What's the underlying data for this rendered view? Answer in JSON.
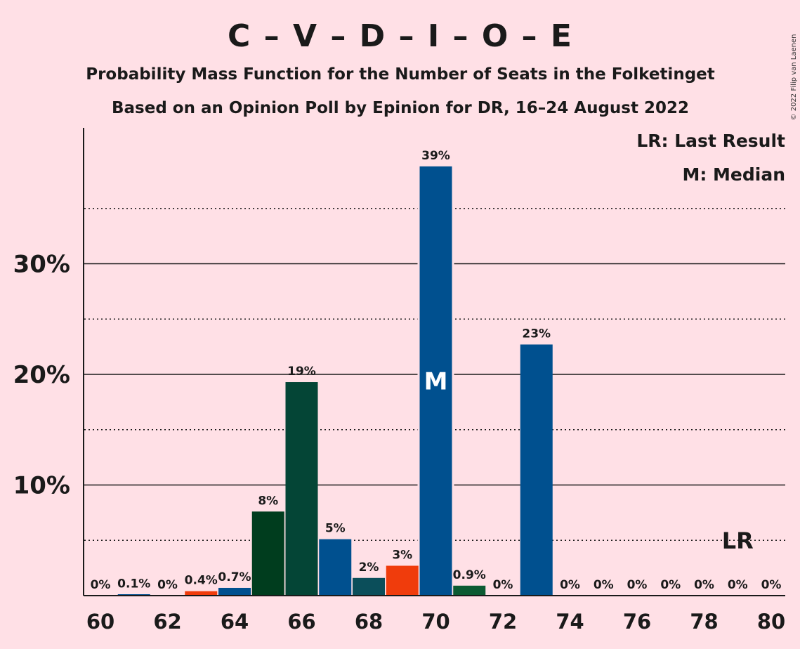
{
  "chart_data": {
    "type": "bar",
    "title": "C – V – D – I – O – E",
    "subtitle_line1": "Probability Mass Function for the Number of Seats in the Folketinget",
    "subtitle_line2": "Based on an Opinion Poll by Epinion for DR, 16–24 August 2022",
    "copyright": "© 2022 Filip van Laenen",
    "legend": {
      "lr": "LR: Last Result",
      "m": "M: Median"
    },
    "median_marker": "M",
    "lr_marker": "LR",
    "median_seat": 70,
    "last_result_seat": 79,
    "x": [
      60,
      61,
      62,
      63,
      64,
      65,
      66,
      67,
      68,
      69,
      70,
      71,
      72,
      73,
      74,
      75,
      76,
      77,
      78,
      79,
      80
    ],
    "values": [
      0,
      0.1,
      0,
      0.4,
      0.7,
      7.6,
      19.3,
      5.1,
      1.6,
      2.7,
      38.8,
      0.9,
      0,
      22.7,
      0,
      0,
      0,
      0,
      0,
      0,
      0
    ],
    "labels": [
      "0%",
      "0.1%",
      "0%",
      "0.4%",
      "0.7%",
      "8%",
      "19%",
      "5%",
      "2%",
      "3%",
      "39%",
      "0.9%",
      "0%",
      "23%",
      "0%",
      "0%",
      "0%",
      "0%",
      "0%",
      "0%",
      "0%"
    ],
    "bar_colors": [
      "#00508f",
      "#00508f",
      "#00508f",
      "#f03c0c",
      "#00508f",
      "#003d1e",
      "#044536",
      "#00508f",
      "#0b4e5a",
      "#f03c0c",
      "#00508f",
      "#0b5a32",
      "#00508f",
      "#00508f",
      "#00508f",
      "#00508f",
      "#00508f",
      "#00508f",
      "#00508f",
      "#00508f",
      "#00508f"
    ],
    "xticks": [
      "60",
      "62",
      "64",
      "66",
      "68",
      "70",
      "72",
      "74",
      "76",
      "78",
      "80"
    ],
    "yticks": [
      "10%",
      "20%",
      "30%"
    ],
    "ytick_values": [
      10,
      20,
      30
    ],
    "ylim": [
      0,
      42
    ],
    "grid": true
  }
}
